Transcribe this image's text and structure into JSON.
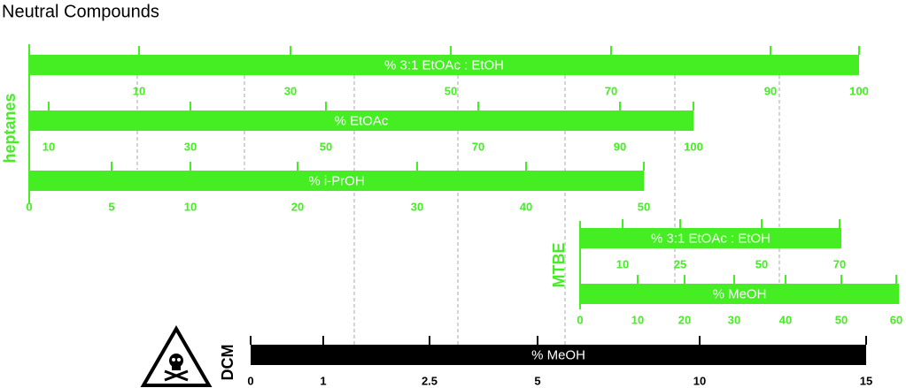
{
  "title": "Neutral Compounds",
  "groups": [
    {
      "label": "heptanes",
      "scales": [
        {
          "label": "% 3:1 EtOAc : EtOH",
          "ticks": [
            10,
            30,
            50,
            70,
            90,
            100
          ]
        },
        {
          "label": "% EtOAc",
          "ticks": [
            10,
            30,
            50,
            70,
            90,
            100
          ]
        },
        {
          "label": "% i-PrOH",
          "ticks": [
            0,
            5,
            10,
            20,
            30,
            40,
            50
          ]
        }
      ]
    },
    {
      "label": "MTBE",
      "scales": [
        {
          "label": "% 3:1 EtOAc : EtOH",
          "ticks": [
            10,
            25,
            50,
            70
          ]
        },
        {
          "label": "% MeOH",
          "ticks": [
            0,
            10,
            20,
            30,
            40,
            50,
            60
          ]
        }
      ]
    },
    {
      "label": "DCM",
      "scales": [
        {
          "label": "% MeOH",
          "ticks": [
            0,
            1,
            2.5,
            5,
            10,
            15
          ]
        }
      ]
    }
  ]
}
